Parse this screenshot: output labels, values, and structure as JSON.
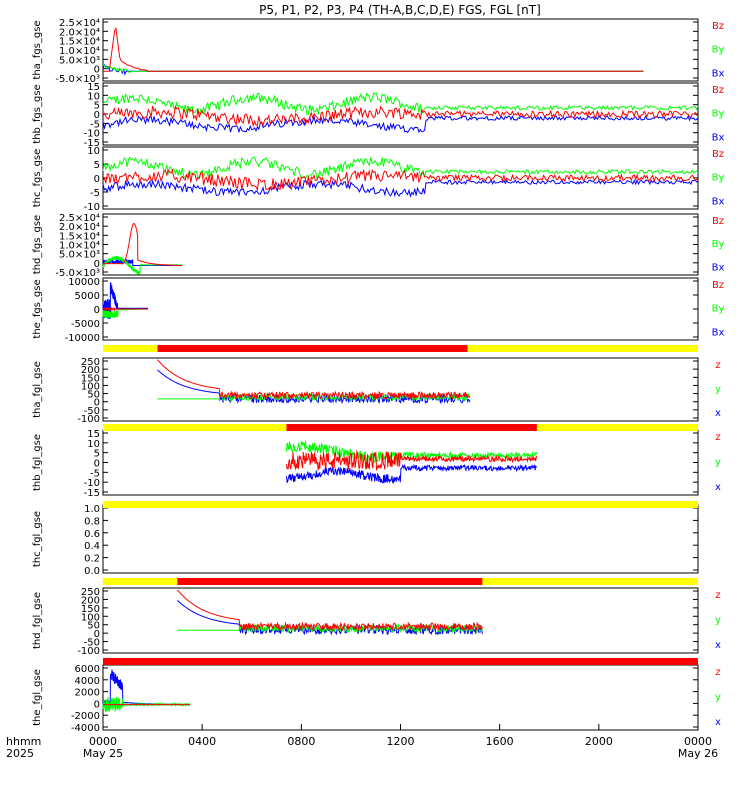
{
  "title": "P5, P1, P2, P3, P4 (TH-A,B,C,D,E) FGS, FGL [nT]",
  "x_axis": {
    "corner_labels": [
      "hhmm",
      "2025"
    ],
    "ticks": [
      "0000",
      "0400",
      "0800",
      "1200",
      "1600",
      "2000",
      "0000"
    ],
    "date_labels": [
      "May 25",
      "May 26"
    ]
  },
  "colors": {
    "x": "#0000ff",
    "y": "#00ff00",
    "z": "#ff0000",
    "bar_red": "#ff0000",
    "bar_yellow": "#ffff00"
  },
  "chart_data": [
    {
      "type": "line",
      "ylabel": "tha_fgs_gse",
      "legend": [
        "Bz",
        "By",
        "Bx"
      ],
      "yticks": [
        "2.5×10⁴",
        "2.0×10⁴",
        "1.5×10⁴",
        "1.0×10⁴",
        "5.0×10³",
        "0",
        "-5.0×10³"
      ],
      "ylim": [
        -5000,
        27000
      ],
      "xrange_hours": [
        0,
        21.8
      ]
    },
    {
      "type": "line",
      "ylabel": "thb_fgs_gse",
      "legend": [
        "Bz",
        "By",
        "Bx"
      ],
      "yticks": [
        "15",
        "10",
        "5",
        "0",
        "-5",
        "-10",
        "-15"
      ],
      "ylim": [
        -15,
        15
      ],
      "xrange_hours": [
        0,
        24
      ]
    },
    {
      "type": "line",
      "ylabel": "thc_fgs_gse",
      "legend": [
        "Bz",
        "By",
        "Bx"
      ],
      "yticks": [
        "10",
        "5",
        "0",
        "-5",
        "-10"
      ],
      "ylim": [
        -12,
        12
      ],
      "xrange_hours": [
        0,
        24
      ]
    },
    {
      "type": "line",
      "ylabel": "thd_fgs_gse",
      "legend": [
        "Bz",
        "By",
        "Bx"
      ],
      "yticks": [
        "2.5×10⁴",
        "2.0×10⁴",
        "1.5×10⁴",
        "1.0×10⁴",
        "5.0×10³",
        "0",
        "-5.0×10³"
      ],
      "ylim": [
        -5000,
        27000
      ],
      "xrange_hours": [
        0,
        3.2
      ]
    },
    {
      "type": "line",
      "ylabel": "the_fgs_gse",
      "legend": [
        "Bz",
        "By",
        "Bx"
      ],
      "yticks": [
        "10000",
        "5000",
        "0",
        "-5000",
        "-10000"
      ],
      "ylim": [
        -12000,
        12000
      ],
      "xrange_hours": [
        0,
        1.8
      ]
    },
    {
      "type": "line",
      "ylabel": "tha_fgl_gse",
      "legend": [
        "z",
        "y",
        "x"
      ],
      "yticks": [
        "250",
        "200",
        "150",
        "100",
        "50",
        "0",
        "-50",
        "-100"
      ],
      "ylim": [
        -110,
        260
      ],
      "xrange_hours": [
        2.2,
        14.8
      ]
    },
    {
      "type": "line",
      "ylabel": "thb_fgl_gse",
      "legend": [
        "z",
        "y",
        "x"
      ],
      "yticks": [
        "15",
        "10",
        "5",
        "0",
        "-5",
        "-10",
        "-15"
      ],
      "ylim": [
        -18,
        18
      ],
      "xrange_hours": [
        7.4,
        17.5
      ]
    },
    {
      "type": "line",
      "ylabel": "thc_fgl_gse",
      "legend": [],
      "yticks": [
        "1.0",
        "0.8",
        "0.6",
        "0.4",
        "0.2",
        "0.0"
      ],
      "ylim": [
        -0.1,
        1.05
      ],
      "xrange_hours": []
    },
    {
      "type": "line",
      "ylabel": "thd_fgl_gse",
      "legend": [
        "z",
        "y",
        "x"
      ],
      "yticks": [
        "250",
        "200",
        "150",
        "100",
        "50",
        "0",
        "-50",
        "-100"
      ],
      "ylim": [
        -110,
        260
      ],
      "xrange_hours": [
        3,
        15.3
      ]
    },
    {
      "type": "line",
      "ylabel": "the_fgl_gse",
      "legend": [
        "z",
        "y",
        "x"
      ],
      "yticks": [
        "6000",
        "4000",
        "2000",
        "0",
        "-2000",
        "-4000"
      ],
      "ylim": [
        -4500,
        7000
      ],
      "xrange_hours": [
        0,
        3.5
      ]
    }
  ],
  "mode_bars": [
    {
      "red": [
        2.2,
        14.7
      ]
    },
    {
      "red": [
        7.4,
        17.5
      ]
    },
    {
      "red": []
    },
    {
      "red": [
        3.0,
        15.3
      ]
    },
    {
      "red": [
        0,
        24
      ]
    }
  ]
}
